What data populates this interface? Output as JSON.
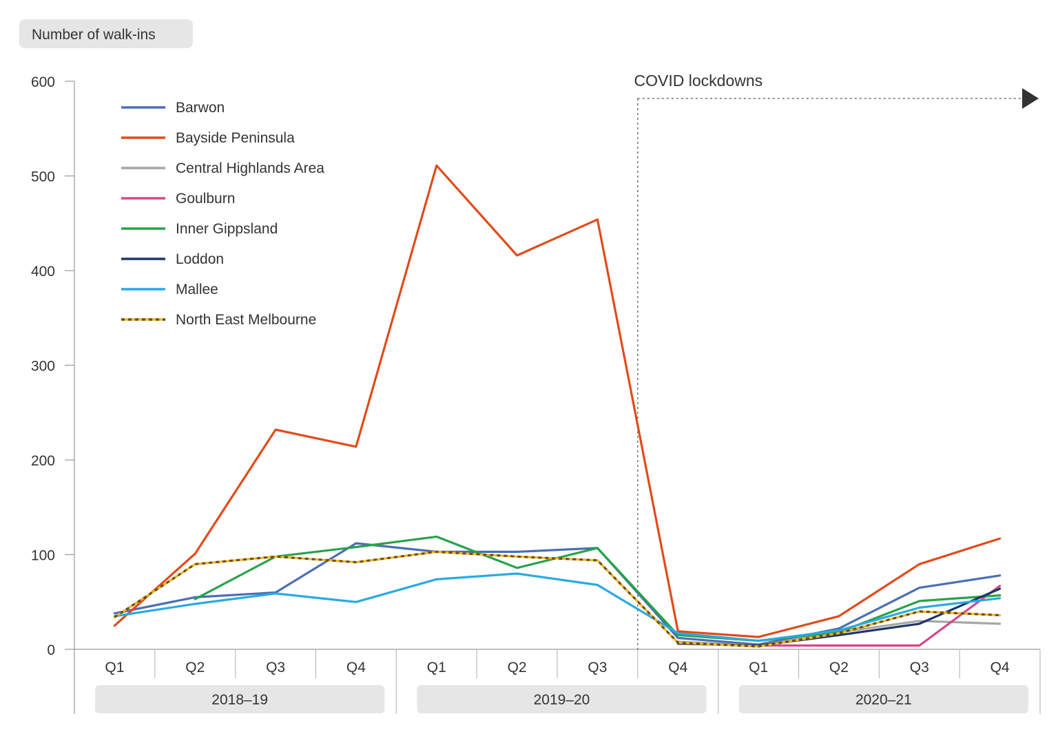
{
  "chart_data": {
    "type": "line",
    "ylabel": "Number of walk-ins",
    "ylim": [
      0,
      600
    ],
    "yticks": [
      0,
      100,
      200,
      300,
      400,
      500,
      600
    ],
    "categories": [
      "Q1",
      "Q2",
      "Q3",
      "Q4",
      "Q1",
      "Q2",
      "Q3",
      "Q4",
      "Q1",
      "Q2",
      "Q3",
      "Q4"
    ],
    "year_groups": [
      {
        "label": "2018–19",
        "start": 0,
        "end": 3
      },
      {
        "label": "2019–20",
        "start": 4,
        "end": 7
      },
      {
        "label": "2020–21",
        "start": 8,
        "end": 11
      }
    ],
    "annotation": {
      "label": "COVID lockdowns",
      "start_index": 6.5
    },
    "legend_position": "top-left",
    "series": [
      {
        "name": "Barwon",
        "color": "#4a6fb5",
        "dashed": false,
        "values": [
          38,
          55,
          60,
          112,
          103,
          103,
          107,
          12,
          5,
          22,
          65,
          78
        ]
      },
      {
        "name": "Bayside Peninsula",
        "color": "#e34a1a",
        "dashed": false,
        "values": [
          25,
          101,
          232,
          214,
          511,
          416,
          454,
          19,
          13,
          35,
          90,
          117
        ]
      },
      {
        "name": "Central Highlands Area",
        "color": "#a6a6a6",
        "dashed": false,
        "values": [
          null,
          null,
          null,
          null,
          null,
          null,
          null,
          8,
          4,
          18,
          30,
          27
        ]
      },
      {
        "name": "Goulburn",
        "color": "#d6468c",
        "dashed": false,
        "values": [
          null,
          null,
          null,
          null,
          null,
          null,
          null,
          null,
          4,
          4,
          4,
          67
        ]
      },
      {
        "name": "Inner Gippsland",
        "color": "#27a34a",
        "dashed": false,
        "values": [
          null,
          53,
          98,
          108,
          119,
          86,
          107,
          15,
          9,
          18,
          51,
          57
        ]
      },
      {
        "name": "Loddon",
        "color": "#1f3566",
        "dashed": false,
        "values": [
          null,
          null,
          null,
          null,
          null,
          null,
          null,
          6,
          4,
          15,
          27,
          64
        ]
      },
      {
        "name": "Mallee",
        "color": "#29aae2",
        "dashed": false,
        "values": [
          35,
          48,
          59,
          50,
          74,
          80,
          68,
          17,
          9,
          20,
          44,
          54
        ]
      },
      {
        "name": "North East Melbourne",
        "color": "#f2b71e",
        "dashed": true,
        "dash_color": "#6b4f1d",
        "values": [
          34,
          90,
          98,
          92,
          103,
          98,
          94,
          7,
          3,
          17,
          40,
          36
        ]
      }
    ]
  }
}
